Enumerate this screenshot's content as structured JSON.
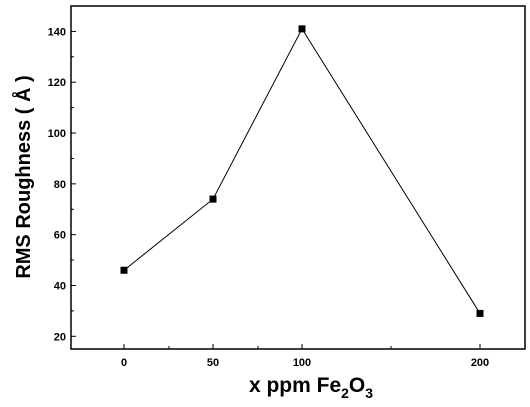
{
  "chart_data": {
    "type": "line",
    "categories": [
      "0",
      "50",
      "100",
      "200"
    ],
    "x_tick_labels": [
      "0",
      "50",
      "100",
      "200"
    ],
    "series": [
      {
        "values": [
          46,
          74,
          141,
          29
        ]
      }
    ],
    "y_ticks": [
      20,
      40,
      60,
      80,
      100,
      120,
      140
    ],
    "ylim": [
      15,
      150
    ],
    "xlabel": {
      "prefix": "x ppm Fe",
      "sub1": "2",
      "mid": "O",
      "sub2": "3"
    },
    "ylabel": "RMS Roughness ( Å )",
    "grid": false,
    "marker": "square",
    "line_color": "#000000"
  }
}
